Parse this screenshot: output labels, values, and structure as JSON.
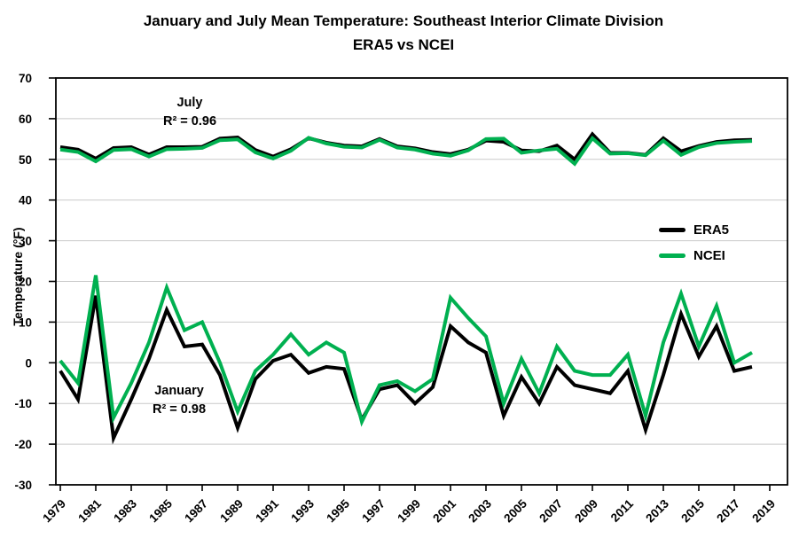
{
  "title": {
    "line1": "January and July Mean Temperature: Southeast Interior Climate Division",
    "line2": "ERA5 vs NCEI"
  },
  "y_axis": {
    "label": "Temperature (°F)",
    "ticks": [
      70,
      60,
      50,
      40,
      30,
      20,
      10,
      0,
      -10,
      -20,
      -30
    ]
  },
  "x_axis": {
    "ticks": [
      1979,
      1981,
      1983,
      1985,
      1987,
      1989,
      1991,
      1993,
      1995,
      1997,
      1999,
      2001,
      2003,
      2005,
      2007,
      2009,
      2011,
      2013,
      2015,
      2017,
      2019
    ]
  },
  "legend": [
    {
      "name": "ERA5",
      "color": "#000000"
    },
    {
      "name": "NCEI",
      "color": "#00b050"
    }
  ],
  "annotations": {
    "july": {
      "line1": "July",
      "line2": "R² = 0.96"
    },
    "january": {
      "line1": "January",
      "line2": "R² = 0.98"
    }
  },
  "chart_data": {
    "type": "line",
    "title": "January and July Mean Temperature: Southeast Interior Climate Division — ERA5 vs NCEI",
    "xlabel": "",
    "ylabel": "Temperature (°F)",
    "ylim": [
      -30,
      70
    ],
    "xlim": [
      1978.75,
      2020
    ],
    "grid": "horizontal",
    "legend_position": "center-right",
    "r_squared": {
      "july": 0.96,
      "january": 0.98
    },
    "x": [
      1979,
      1980,
      1981,
      1982,
      1983,
      1984,
      1985,
      1986,
      1987,
      1988,
      1989,
      1990,
      1991,
      1992,
      1993,
      1994,
      1995,
      1996,
      1997,
      1998,
      1999,
      2000,
      2001,
      2002,
      2003,
      2004,
      2005,
      2006,
      2007,
      2008,
      2009,
      2010,
      2011,
      2012,
      2013,
      2014,
      2015,
      2016,
      2017,
      2018
    ],
    "series": [
      {
        "name": "ERA5 July",
        "color": "#000000",
        "values": [
          53.0,
          52.4,
          50.2,
          52.8,
          53.0,
          51.2,
          53.0,
          53.0,
          53.1,
          55.1,
          55.4,
          52.3,
          50.7,
          52.5,
          55.2,
          54.1,
          53.4,
          53.2,
          55.0,
          53.2,
          52.7,
          51.8,
          51.3,
          52.4,
          54.6,
          54.3,
          52.2,
          52.0,
          53.4,
          50.0,
          56.2,
          51.6,
          51.6,
          51.1,
          55.2,
          52.0,
          53.3,
          54.3,
          54.7,
          54.8
        ]
      },
      {
        "name": "ERA5 January",
        "color": "#000000",
        "values": [
          -2,
          -9,
          16.5,
          -18.5,
          -9,
          1,
          13,
          4,
          4.5,
          -3,
          -16,
          -4,
          0.5,
          2,
          -2.5,
          -1,
          -1.5,
          -14,
          -6.5,
          -5.5,
          -10,
          -6,
          9,
          5,
          2.5,
          -13,
          -3.5,
          -10,
          -1,
          -5.5,
          -6.5,
          -7.5,
          -2,
          -16.5,
          -3,
          12,
          1.5,
          9,
          -2,
          -1
        ]
      },
      {
        "name": "NCEI July",
        "color": "#00b050",
        "values": [
          52.4,
          51.8,
          49.5,
          52.3,
          52.5,
          50.7,
          52.5,
          52.6,
          52.8,
          54.7,
          54.9,
          51.7,
          50.2,
          52.1,
          55.3,
          53.9,
          53.1,
          52.9,
          54.8,
          52.9,
          52.4,
          51.4,
          50.9,
          52.2,
          55.0,
          55.1,
          51.6,
          52.2,
          52.6,
          48.9,
          55.2,
          51.4,
          51.5,
          51.0,
          54.6,
          51.1,
          53.0,
          54.0,
          54.3,
          54.5
        ]
      },
      {
        "name": "NCEI January",
        "color": "#00b050",
        "values": [
          0.5,
          -5,
          21.5,
          -13.5,
          -5,
          5,
          18.5,
          8,
          10,
          0,
          -12,
          -2,
          2,
          7,
          2,
          5,
          2.5,
          -14.5,
          -5.5,
          -4.5,
          -7,
          -4,
          16,
          11,
          6.5,
          -10,
          1,
          -7.5,
          4,
          -2,
          -3,
          -3,
          2,
          -13,
          5,
          17,
          4,
          14,
          0,
          2.5
        ]
      }
    ]
  }
}
